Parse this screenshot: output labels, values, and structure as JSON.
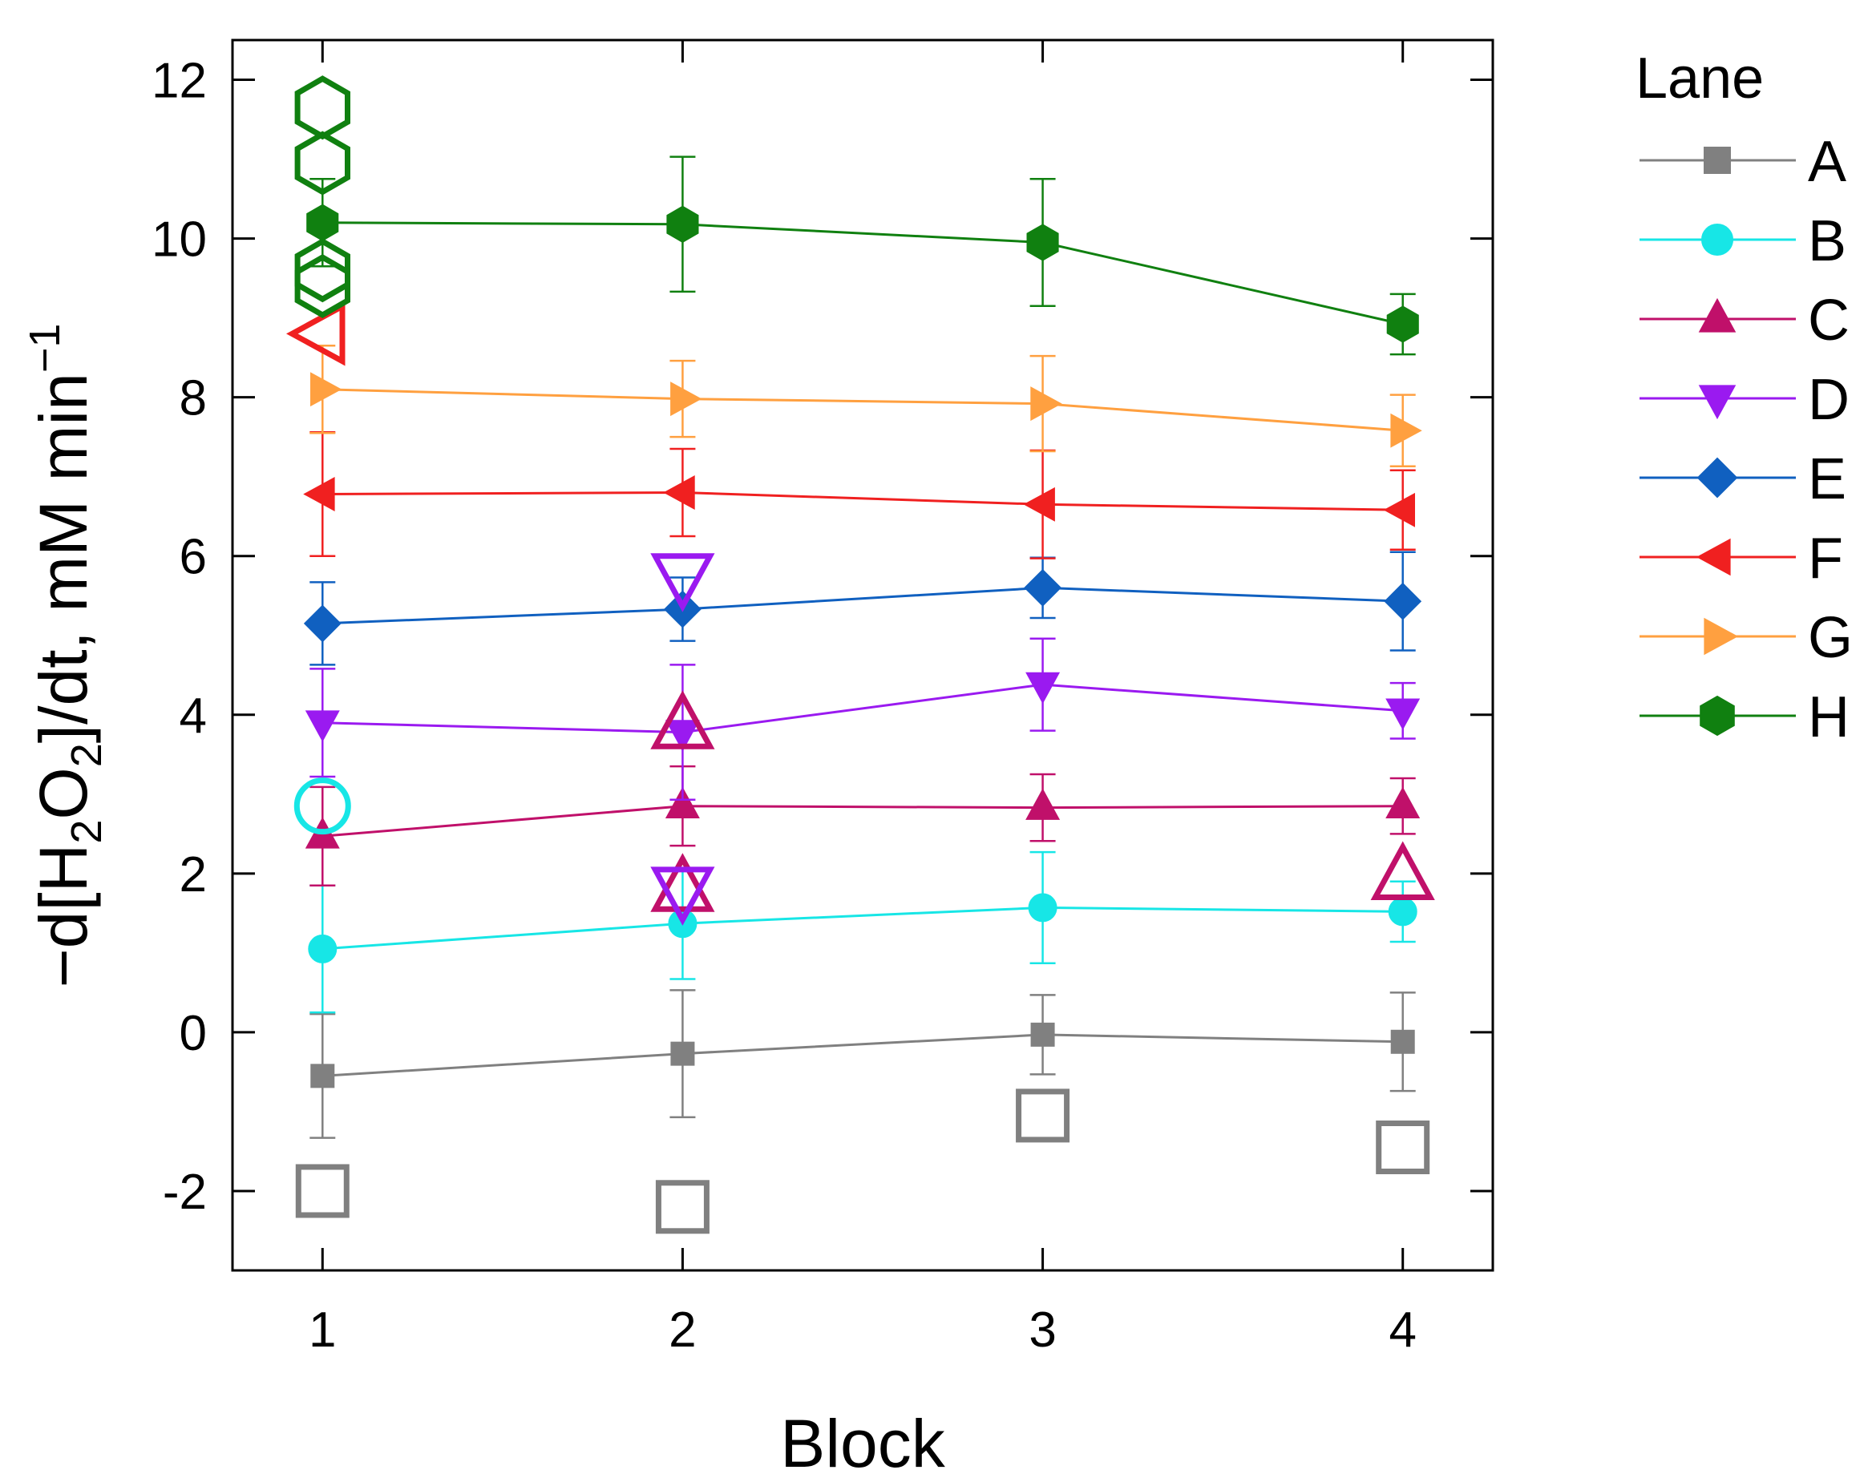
{
  "chart_data": {
    "type": "line",
    "title": "",
    "xlabel": "Block",
    "ylabel": "-d[H2O2]/dt, mM min-1",
    "ylabel_parts": {
      "prefix": "−d[H",
      "sub1": "2",
      "mid": "O",
      "sub2": "2",
      "suffix": "]/dt,  mM min",
      "sup": "−1"
    },
    "x": [
      1,
      2,
      3,
      4
    ],
    "xlim": [
      0.75,
      4.25
    ],
    "ylim": [
      -3,
      12.5
    ],
    "x_ticks": [
      "1",
      "2",
      "3",
      "4"
    ],
    "y_ticks": [
      "-2",
      "0",
      "2",
      "4",
      "6",
      "8",
      "10",
      "12"
    ],
    "y_tick_values": [
      -2,
      0,
      2,
      4,
      6,
      8,
      10,
      12
    ],
    "grid": false,
    "legend": {
      "title": "Lane",
      "position": "right"
    },
    "series": [
      {
        "name": "A",
        "color": "#808080",
        "marker": "square",
        "values": [
          -0.55,
          -0.27,
          -0.03,
          -0.12
        ],
        "errors": [
          0.78,
          0.8,
          0.5,
          0.62
        ],
        "outliers": [
          [
            1,
            -2.0
          ],
          [
            2,
            -2.2
          ],
          [
            3,
            -1.05
          ],
          [
            4,
            -1.45
          ]
        ]
      },
      {
        "name": "B",
        "color": "#17e6e6",
        "marker": "circle",
        "values": [
          1.05,
          1.37,
          1.57,
          1.52
        ],
        "errors": [
          0.8,
          0.7,
          0.7,
          0.38
        ],
        "outliers": [
          [
            1,
            2.85
          ]
        ]
      },
      {
        "name": "C",
        "color": "#c0106a",
        "marker": "triangle-up",
        "values": [
          2.47,
          2.85,
          2.83,
          2.85
        ],
        "errors": [
          0.62,
          0.5,
          0.42,
          0.35
        ],
        "outliers": [
          [
            2,
            1.8
          ],
          [
            2,
            3.85
          ],
          [
            4,
            1.95
          ]
        ]
      },
      {
        "name": "D",
        "color": "#9a1af0",
        "marker": "triangle-down",
        "values": [
          3.9,
          3.78,
          4.38,
          4.05
        ],
        "errors": [
          0.68,
          0.85,
          0.58,
          0.35
        ],
        "outliers": [
          [
            2,
            1.8
          ],
          [
            2,
            5.75
          ]
        ]
      },
      {
        "name": "E",
        "color": "#1060c0",
        "marker": "diamond",
        "values": [
          5.15,
          5.33,
          5.6,
          5.43
        ],
        "errors": [
          0.52,
          0.4,
          0.38,
          0.62
        ],
        "outliers": []
      },
      {
        "name": "F",
        "color": "#f02020",
        "marker": "triangle-left",
        "values": [
          6.78,
          6.8,
          6.65,
          6.58
        ],
        "errors": [
          0.78,
          0.55,
          0.68,
          0.5
        ],
        "outliers": [
          [
            1,
            8.8
          ]
        ]
      },
      {
        "name": "G",
        "color": "#ffa040",
        "marker": "triangle-right",
        "values": [
          8.1,
          7.98,
          7.92,
          7.58
        ],
        "errors": [
          0.55,
          0.48,
          0.6,
          0.45
        ],
        "outliers": []
      },
      {
        "name": "H",
        "color": "#108010",
        "marker": "hexagon",
        "values": [
          10.2,
          10.18,
          9.95,
          8.92
        ],
        "errors": [
          0.55,
          0.85,
          0.8,
          0.38
        ],
        "outliers": [
          [
            1,
            11.65
          ],
          [
            1,
            10.95
          ],
          [
            1,
            9.6
          ],
          [
            1,
            9.4
          ]
        ]
      }
    ]
  }
}
